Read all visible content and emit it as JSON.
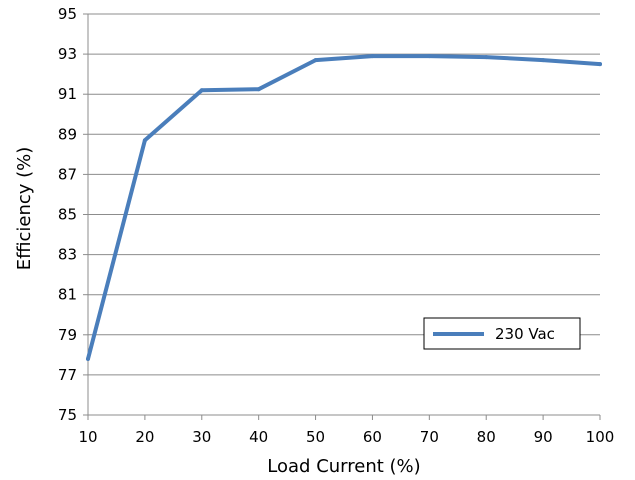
{
  "chart_data": {
    "type": "line",
    "title": "",
    "xlabel": "Load Current  (%)",
    "ylabel": "Efficiency  (%)",
    "xlim": [
      10,
      100
    ],
    "ylim": [
      75,
      95
    ],
    "xticks": [
      10,
      20,
      30,
      40,
      50,
      60,
      70,
      80,
      90,
      100
    ],
    "yticks": [
      75,
      77,
      79,
      81,
      83,
      85,
      87,
      89,
      91,
      93,
      95
    ],
    "grid": "horizontal",
    "legend_position": "right",
    "series": [
      {
        "name": "230 Vac",
        "color": "#4A7EBB",
        "x": [
          10,
          20,
          30,
          40,
          50,
          60,
          70,
          80,
          90,
          100
        ],
        "y": [
          77.8,
          88.7,
          91.2,
          91.25,
          92.7,
          92.9,
          92.9,
          92.85,
          92.7,
          92.5
        ]
      }
    ]
  }
}
